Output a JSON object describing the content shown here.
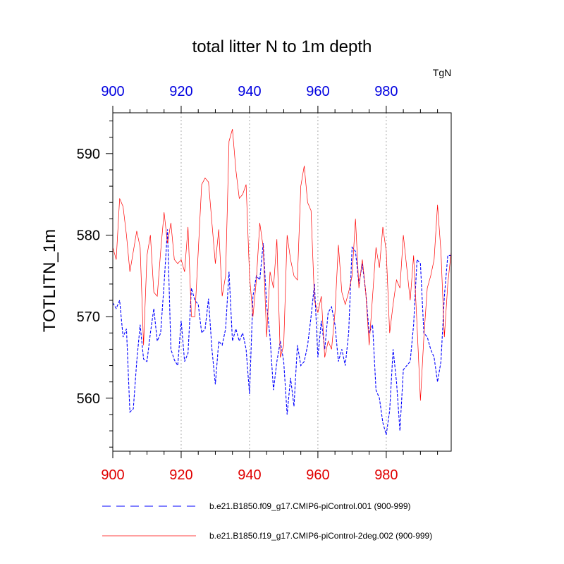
{
  "chart_data": {
    "type": "line",
    "title": "total litter N to 1m depth",
    "ylabel": "TOTLITN_1m",
    "units_label": "TgN",
    "xlim": [
      900,
      999
    ],
    "ylim": [
      553.5,
      595
    ],
    "xticks": [
      900,
      920,
      940,
      960,
      980
    ],
    "xticks_top": [
      900,
      920,
      940,
      960,
      980
    ],
    "yticks": [
      560,
      570,
      580,
      590
    ],
    "grid": "vertical dotted at major x ticks",
    "colors": {
      "x_bottom_ticks": "#e00000",
      "x_top_ticks": "#0000e0"
    },
    "series": [
      {
        "name": "b.e21.B1850.f09_g17.CMIP6-piControl.001 (900-999)",
        "color": "#0000ff",
        "dash": "dashed",
        "x_start": 900,
        "values": [
          571.7,
          571.0,
          572.0,
          567.5,
          568.5,
          558.3,
          558.7,
          564.5,
          569.0,
          564.8,
          564.5,
          568.0,
          571.0,
          567.0,
          568.0,
          574.0,
          580.7,
          566.0,
          564.7,
          564.0,
          569.5,
          564.5,
          565.5,
          573.5,
          572.0,
          571.5,
          568.0,
          568.5,
          572.2,
          566.0,
          561.7,
          567.0,
          566.5,
          568.5,
          575.5,
          567.0,
          568.5,
          567.0,
          568.0,
          566.0,
          560.5,
          572.5,
          575.0,
          574.5,
          579.0,
          571.5,
          567.5,
          561.0,
          564.5,
          567.0,
          564.5,
          558.0,
          562.5,
          559.0,
          566.5,
          564.0,
          564.5,
          566.5,
          570.0,
          574.0,
          565.0,
          569.5,
          566.0,
          570.5,
          571.2,
          569.0,
          564.5,
          566.0,
          564.0,
          568.0,
          578.5,
          578.0,
          574.0,
          576.5,
          573.0,
          568.0,
          569.0,
          561.0,
          560.0,
          557.0,
          555.5,
          558.5,
          566.0,
          562.0,
          556.0,
          563.5,
          564.0,
          564.5,
          569.0,
          577.0,
          576.5,
          568.0,
          567.5,
          566.0,
          565.0,
          562.0,
          564.5,
          572.5,
          577.5,
          577.5
        ]
      },
      {
        "name": "b.e21.B1850.f19_g17.CMIP6-piControl-2deg.002 (900-999)",
        "color": "#ff0000",
        "dash": "solid",
        "x_start": 900,
        "values": [
          578.5,
          577.0,
          584.5,
          583.5,
          580.0,
          575.5,
          578.0,
          580.5,
          578.5,
          566.5,
          577.5,
          580.0,
          573.0,
          572.5,
          578.0,
          582.8,
          579.0,
          581.5,
          577.0,
          576.5,
          577.0,
          575.5,
          581.0,
          570.0,
          570.0,
          578.0,
          586.2,
          587.0,
          586.5,
          581.5,
          576.5,
          580.7,
          572.5,
          575.0,
          591.5,
          593.0,
          588.0,
          584.5,
          585.0,
          586.2,
          575.0,
          570.0,
          574.5,
          581.5,
          578.5,
          567.5,
          575.5,
          573.5,
          579.5,
          565.0,
          566.5,
          580.0,
          577.0,
          575.0,
          574.5,
          586.0,
          588.5,
          584.0,
          583.0,
          572.0,
          570.5,
          572.5,
          565.0,
          567.0,
          566.0,
          570.5,
          578.8,
          573.0,
          571.5,
          573.0,
          575.0,
          582.0,
          573.5,
          577.0,
          573.0,
          566.5,
          572.5,
          578.5,
          576.0,
          581.0,
          578.0,
          568.0,
          571.5,
          574.5,
          573.5,
          580.0,
          576.0,
          572.0,
          577.5,
          569.0,
          559.7,
          567.5,
          573.5,
          575.0,
          577.0,
          583.7,
          578.0,
          567.5,
          574.0,
          578.0
        ]
      }
    ]
  }
}
